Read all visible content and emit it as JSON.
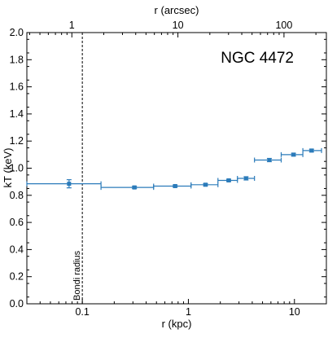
{
  "chart_data": {
    "type": "scatter",
    "title": "",
    "xlabel": "r (kpc)",
    "ylabel": "kT (keV)",
    "x2label": "r (arcsec)",
    "xscale": "log",
    "xlim": [
      0.03,
      20
    ],
    "ylim": [
      0.0,
      2.0
    ],
    "x_ticks": [
      {
        "value": 0.1,
        "label": "0.1"
      },
      {
        "value": 1,
        "label": "1"
      },
      {
        "value": 10,
        "label": "10"
      }
    ],
    "y_ticks": [
      "0.0",
      "0.2",
      "0.4",
      "0.6",
      "0.8",
      "1.0",
      "1.2",
      "1.4",
      "1.6",
      "1.8",
      "2.0"
    ],
    "x2_ticks": [
      {
        "value": 1,
        "label": "1"
      },
      {
        "value": 10,
        "label": "10"
      },
      {
        "value": 100,
        "label": "100"
      }
    ],
    "arcsec_per_kpc": 12.55,
    "annotation": "NGC 4472",
    "vline": {
      "x": 0.1,
      "label": "Bondi radius",
      "style": "dashed"
    },
    "grid": false,
    "color": "#2b7bba",
    "series": [
      {
        "points": [
          {
            "x": 0.075,
            "y": 0.885,
            "xerr_low": 0.03,
            "xerr_high": 0.15,
            "yerr": 0.03
          },
          {
            "x": 0.31,
            "y": 0.858,
            "xerr_low": 0.15,
            "xerr_high": 0.47,
            "yerr": 0.008
          },
          {
            "x": 0.75,
            "y": 0.868,
            "xerr_low": 0.47,
            "xerr_high": 1.06,
            "yerr": 0.008
          },
          {
            "x": 1.45,
            "y": 0.878,
            "xerr_low": 1.06,
            "xerr_high": 1.9,
            "yerr": 0.008
          },
          {
            "x": 2.4,
            "y": 0.91,
            "xerr_low": 1.9,
            "xerr_high": 2.9,
            "yerr": 0.008
          },
          {
            "x": 3.5,
            "y": 0.925,
            "xerr_low": 2.9,
            "xerr_high": 4.2,
            "yerr": 0.012
          },
          {
            "x": 5.8,
            "y": 1.06,
            "xerr_low": 4.2,
            "xerr_high": 7.5,
            "yerr": 0.012
          },
          {
            "x": 9.8,
            "y": 1.1,
            "xerr_low": 7.5,
            "xerr_high": 12.0,
            "yerr": 0.01
          },
          {
            "x": 14.5,
            "y": 1.13,
            "xerr_low": 12.0,
            "xerr_high": 18.0,
            "yerr": 0.01
          }
        ]
      }
    ]
  }
}
